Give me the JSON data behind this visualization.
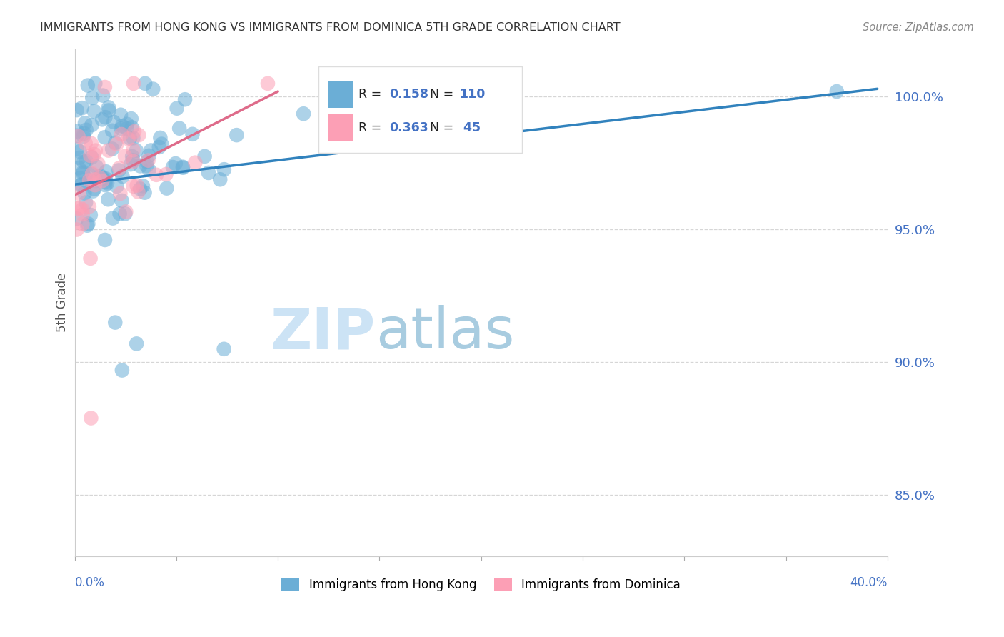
{
  "title": "IMMIGRANTS FROM HONG KONG VS IMMIGRANTS FROM DOMINICA 5TH GRADE CORRELATION CHART",
  "source": "Source: ZipAtlas.com",
  "ylabel": "5th Grade",
  "ytick_vals": [
    0.85,
    0.9,
    0.95,
    1.0
  ],
  "ytick_labels": [
    "85.0%",
    "90.0%",
    "95.0%",
    "100.0%"
  ],
  "xmin": 0.0,
  "xmax": 0.4,
  "ymin": 0.827,
  "ymax": 1.018,
  "legend_label1": "Immigrants from Hong Kong",
  "legend_label2": "Immigrants from Dominica",
  "R1": 0.158,
  "N1": 110,
  "R2": 0.363,
  "N2": 45,
  "color_hk": "#6baed6",
  "color_dom": "#fc9fb5",
  "trendline_color_hk": "#3182bd",
  "trendline_color_dom": "#de6b8a",
  "watermark_zip": "ZIP",
  "watermark_atlas": "atlas",
  "watermark_color": "#cce3f5",
  "background_color": "#ffffff",
  "grid_color": "#cccccc",
  "title_color": "#333333",
  "axis_label_color": "#555555",
  "source_color": "#888888",
  "tick_label_color": "#4472c4",
  "hk_trendline_x0": 0.0,
  "hk_trendline_y0": 0.967,
  "hk_trendline_x1": 0.395,
  "hk_trendline_y1": 1.003,
  "dom_trendline_x0": 0.0,
  "dom_trendline_y0": 0.963,
  "dom_trendline_x1": 0.1,
  "dom_trendline_y1": 1.002
}
